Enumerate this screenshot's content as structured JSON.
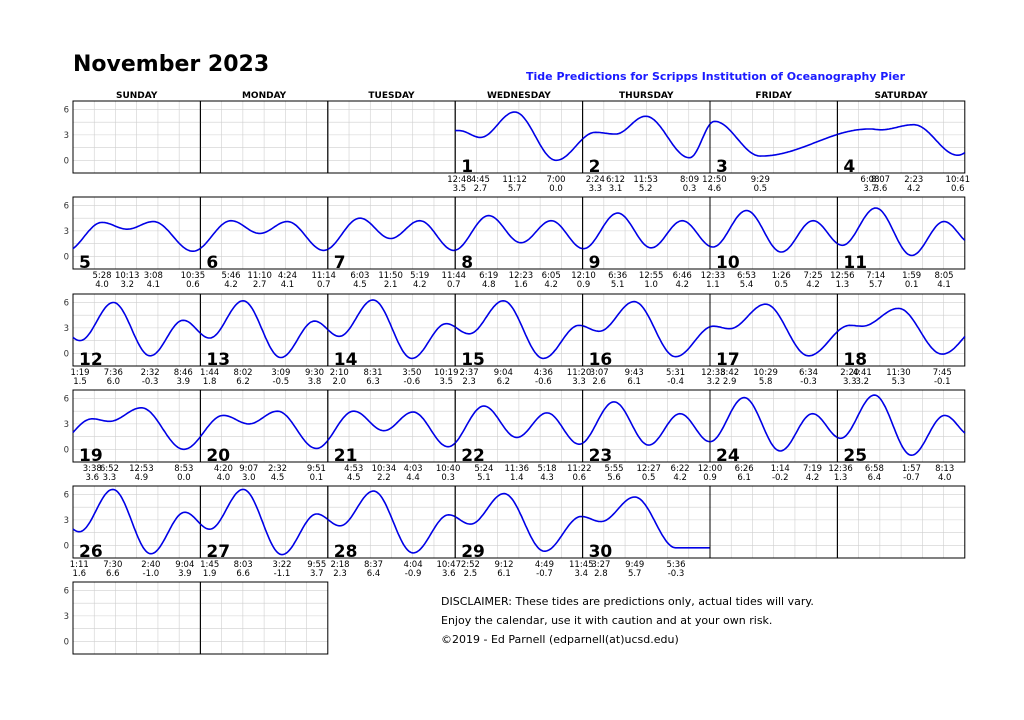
{
  "title": "November 2023",
  "subtitle": "Tide Predictions for Scripps Institution of Oceanography Pier",
  "weekdays": [
    "SUNDAY",
    "MONDAY",
    "TUESDAY",
    "WEDNESDAY",
    "THURSDAY",
    "FRIDAY",
    "SATURDAY"
  ],
  "disclaimer": [
    "DISCLAIMER: These tides are predictions only, actual tides will vary.",
    "Enjoy the calendar, use it with caution and at your own risk.",
    "©2019 - Ed Parnell (edparnell(at)ucsd.edu)"
  ],
  "chart_data": {
    "type": "line",
    "ylim": [
      -1.5,
      7
    ],
    "y_ticks": [
      "6",
      "3",
      "0"
    ],
    "line_color": "#0000e6",
    "grid": true,
    "first_weekday_index": 3,
    "days": [
      {
        "day": "1",
        "tides": [
          {
            "time": "12:48",
            "h": 3.5
          },
          {
            "time": "4:45",
            "h": 2.7
          },
          {
            "time": "11:12",
            "h": 5.7
          },
          {
            "time": "7:00",
            "h": -0.0
          }
        ]
      },
      {
        "day": "2",
        "tides": [
          {
            "time": "2:24",
            "h": 3.3
          },
          {
            "time": "6:12",
            "h": 3.1
          },
          {
            "time": "11:53",
            "h": 5.2
          },
          {
            "time": "8:09",
            "h": 0.3
          }
        ]
      },
      {
        "day": "3",
        "tides": [
          {
            "time": "12:50",
            "h": 4.6
          },
          {
            "time": "9:29",
            "h": 0.5
          }
        ]
      },
      {
        "day": "4",
        "tides": [
          {
            "time": "6:08",
            "h": 3.7
          },
          {
            "time": "8:07",
            "h": 3.6
          },
          {
            "time": "2:23",
            "h": 4.2
          },
          {
            "time": "10:41",
            "h": 0.6
          }
        ]
      },
      {
        "day": "5",
        "tides": [
          {
            "time": "5:28",
            "h": 4.0
          },
          {
            "time": "10:13",
            "h": 3.2
          },
          {
            "time": "3:08",
            "h": 4.1
          },
          {
            "time": "10:35",
            "h": 0.6
          }
        ]
      },
      {
        "day": "6",
        "tides": [
          {
            "time": "5:46",
            "h": 4.2
          },
          {
            "time": "11:10",
            "h": 2.7
          },
          {
            "time": "4:24",
            "h": 4.1
          },
          {
            "time": "11:14",
            "h": 0.7
          }
        ]
      },
      {
        "day": "7",
        "tides": [
          {
            "time": "6:03",
            "h": 4.5
          },
          {
            "time": "11:50",
            "h": 2.1
          },
          {
            "time": "5:19",
            "h": 4.2
          },
          {
            "time": "11:44",
            "h": 0.7
          }
        ]
      },
      {
        "day": "8",
        "tides": [
          {
            "time": "6:19",
            "h": 4.8
          },
          {
            "time": "12:23",
            "h": 1.6
          },
          {
            "time": "6:05",
            "h": 4.2
          }
        ]
      },
      {
        "day": "9",
        "tides": [
          {
            "time": "12:10",
            "h": 0.9
          },
          {
            "time": "6:36",
            "h": 5.1
          },
          {
            "time": "12:55",
            "h": 1.0
          },
          {
            "time": "6:46",
            "h": 4.2
          }
        ]
      },
      {
        "day": "10",
        "tides": [
          {
            "time": "12:33",
            "h": 1.1
          },
          {
            "time": "6:53",
            "h": 5.4
          },
          {
            "time": "1:26",
            "h": 0.5
          },
          {
            "time": "7:25",
            "h": 4.2
          }
        ]
      },
      {
        "day": "11",
        "tides": [
          {
            "time": "12:56",
            "h": 1.3
          },
          {
            "time": "7:14",
            "h": 5.7
          },
          {
            "time": "1:59",
            "h": 0.1
          },
          {
            "time": "8:05",
            "h": 4.1
          }
        ]
      },
      {
        "day": "12",
        "tides": [
          {
            "time": "1:19",
            "h": 1.5
          },
          {
            "time": "7:36",
            "h": 6.0
          },
          {
            "time": "2:32",
            "h": -0.3
          },
          {
            "time": "8:46",
            "h": 3.9
          }
        ]
      },
      {
        "day": "13",
        "tides": [
          {
            "time": "1:44",
            "h": 1.8
          },
          {
            "time": "8:02",
            "h": 6.2
          },
          {
            "time": "3:09",
            "h": -0.5
          },
          {
            "time": "9:30",
            "h": 3.8
          }
        ]
      },
      {
        "day": "14",
        "tides": [
          {
            "time": "2:10",
            "h": 2.0
          },
          {
            "time": "8:31",
            "h": 6.3
          },
          {
            "time": "3:50",
            "h": -0.6
          },
          {
            "time": "10:19",
            "h": 3.5
          }
        ]
      },
      {
        "day": "15",
        "tides": [
          {
            "time": "2:37",
            "h": 2.3
          },
          {
            "time": "9:04",
            "h": 6.2
          },
          {
            "time": "4:36",
            "h": -0.6
          },
          {
            "time": "11:20",
            "h": 3.3
          }
        ]
      },
      {
        "day": "16",
        "tides": [
          {
            "time": "3:07",
            "h": 2.6
          },
          {
            "time": "9:43",
            "h": 6.1
          },
          {
            "time": "5:31",
            "h": -0.4
          }
        ]
      },
      {
        "day": "17",
        "tides": [
          {
            "time": "12:38",
            "h": 3.2
          },
          {
            "time": "3:42",
            "h": 2.9
          },
          {
            "time": "10:29",
            "h": 5.8
          },
          {
            "time": "6:34",
            "h": -0.3
          }
        ]
      },
      {
        "day": "18",
        "tides": [
          {
            "time": "2:20",
            "h": 3.3
          },
          {
            "time": "4:41",
            "h": 3.2
          },
          {
            "time": "11:30",
            "h": 5.3
          },
          {
            "time": "7:45",
            "h": -0.1
          }
        ]
      },
      {
        "day": "19",
        "tides": [
          {
            "time": "3:38",
            "h": 3.6
          },
          {
            "time": "6:52",
            "h": 3.3
          },
          {
            "time": "12:53",
            "h": 4.9
          },
          {
            "time": "8:53",
            "h": 0.0
          }
        ]
      },
      {
        "day": "20",
        "tides": [
          {
            "time": "4:20",
            "h": 4.0
          },
          {
            "time": "9:07",
            "h": 3.0
          },
          {
            "time": "2:32",
            "h": 4.5
          },
          {
            "time": "9:51",
            "h": 0.1
          }
        ]
      },
      {
        "day": "21",
        "tides": [
          {
            "time": "4:53",
            "h": 4.5
          },
          {
            "time": "10:34",
            "h": 2.2
          },
          {
            "time": "4:03",
            "h": 4.4
          },
          {
            "time": "10:40",
            "h": 0.3
          }
        ]
      },
      {
        "day": "22",
        "tides": [
          {
            "time": "5:24",
            "h": 5.1
          },
          {
            "time": "11:36",
            "h": 1.4
          },
          {
            "time": "5:18",
            "h": 4.3
          },
          {
            "time": "11:22",
            "h": 0.6
          }
        ]
      },
      {
        "day": "23",
        "tides": [
          {
            "time": "5:55",
            "h": 5.6
          },
          {
            "time": "12:27",
            "h": 0.5
          },
          {
            "time": "6:22",
            "h": 4.2
          }
        ]
      },
      {
        "day": "24",
        "tides": [
          {
            "time": "12:00",
            "h": 0.9
          },
          {
            "time": "6:26",
            "h": 6.1
          },
          {
            "time": "1:14",
            "h": -0.2
          },
          {
            "time": "7:19",
            "h": 4.2
          }
        ]
      },
      {
        "day": "25",
        "tides": [
          {
            "time": "12:36",
            "h": 1.3
          },
          {
            "time": "6:58",
            "h": 6.4
          },
          {
            "time": "1:57",
            "h": -0.7
          },
          {
            "time": "8:13",
            "h": 4.0
          }
        ]
      },
      {
        "day": "26",
        "tides": [
          {
            "time": "1:11",
            "h": 1.6
          },
          {
            "time": "7:30",
            "h": 6.6
          },
          {
            "time": "2:40",
            "h": -1.0
          },
          {
            "time": "9:04",
            "h": 3.9
          }
        ]
      },
      {
        "day": "27",
        "tides": [
          {
            "time": "1:45",
            "h": 1.9
          },
          {
            "time": "8:03",
            "h": 6.6
          },
          {
            "time": "3:22",
            "h": -1.1
          },
          {
            "time": "9:55",
            "h": 3.7
          }
        ]
      },
      {
        "day": "28",
        "tides": [
          {
            "time": "2:18",
            "h": 2.3
          },
          {
            "time": "8:37",
            "h": 6.4
          },
          {
            "time": "4:04",
            "h": -0.9
          },
          {
            "time": "10:47",
            "h": 3.6
          }
        ]
      },
      {
        "day": "29",
        "tides": [
          {
            "time": "2:52",
            "h": 2.5
          },
          {
            "time": "9:12",
            "h": 6.1
          },
          {
            "time": "4:49",
            "h": -0.7
          },
          {
            "time": "11:45",
            "h": 3.4
          }
        ]
      },
      {
        "day": "30",
        "tides": [
          {
            "time": "3:27",
            "h": 2.8
          },
          {
            "time": "9:49",
            "h": 5.7
          },
          {
            "time": "5:36",
            "h": -0.3
          }
        ]
      }
    ]
  }
}
